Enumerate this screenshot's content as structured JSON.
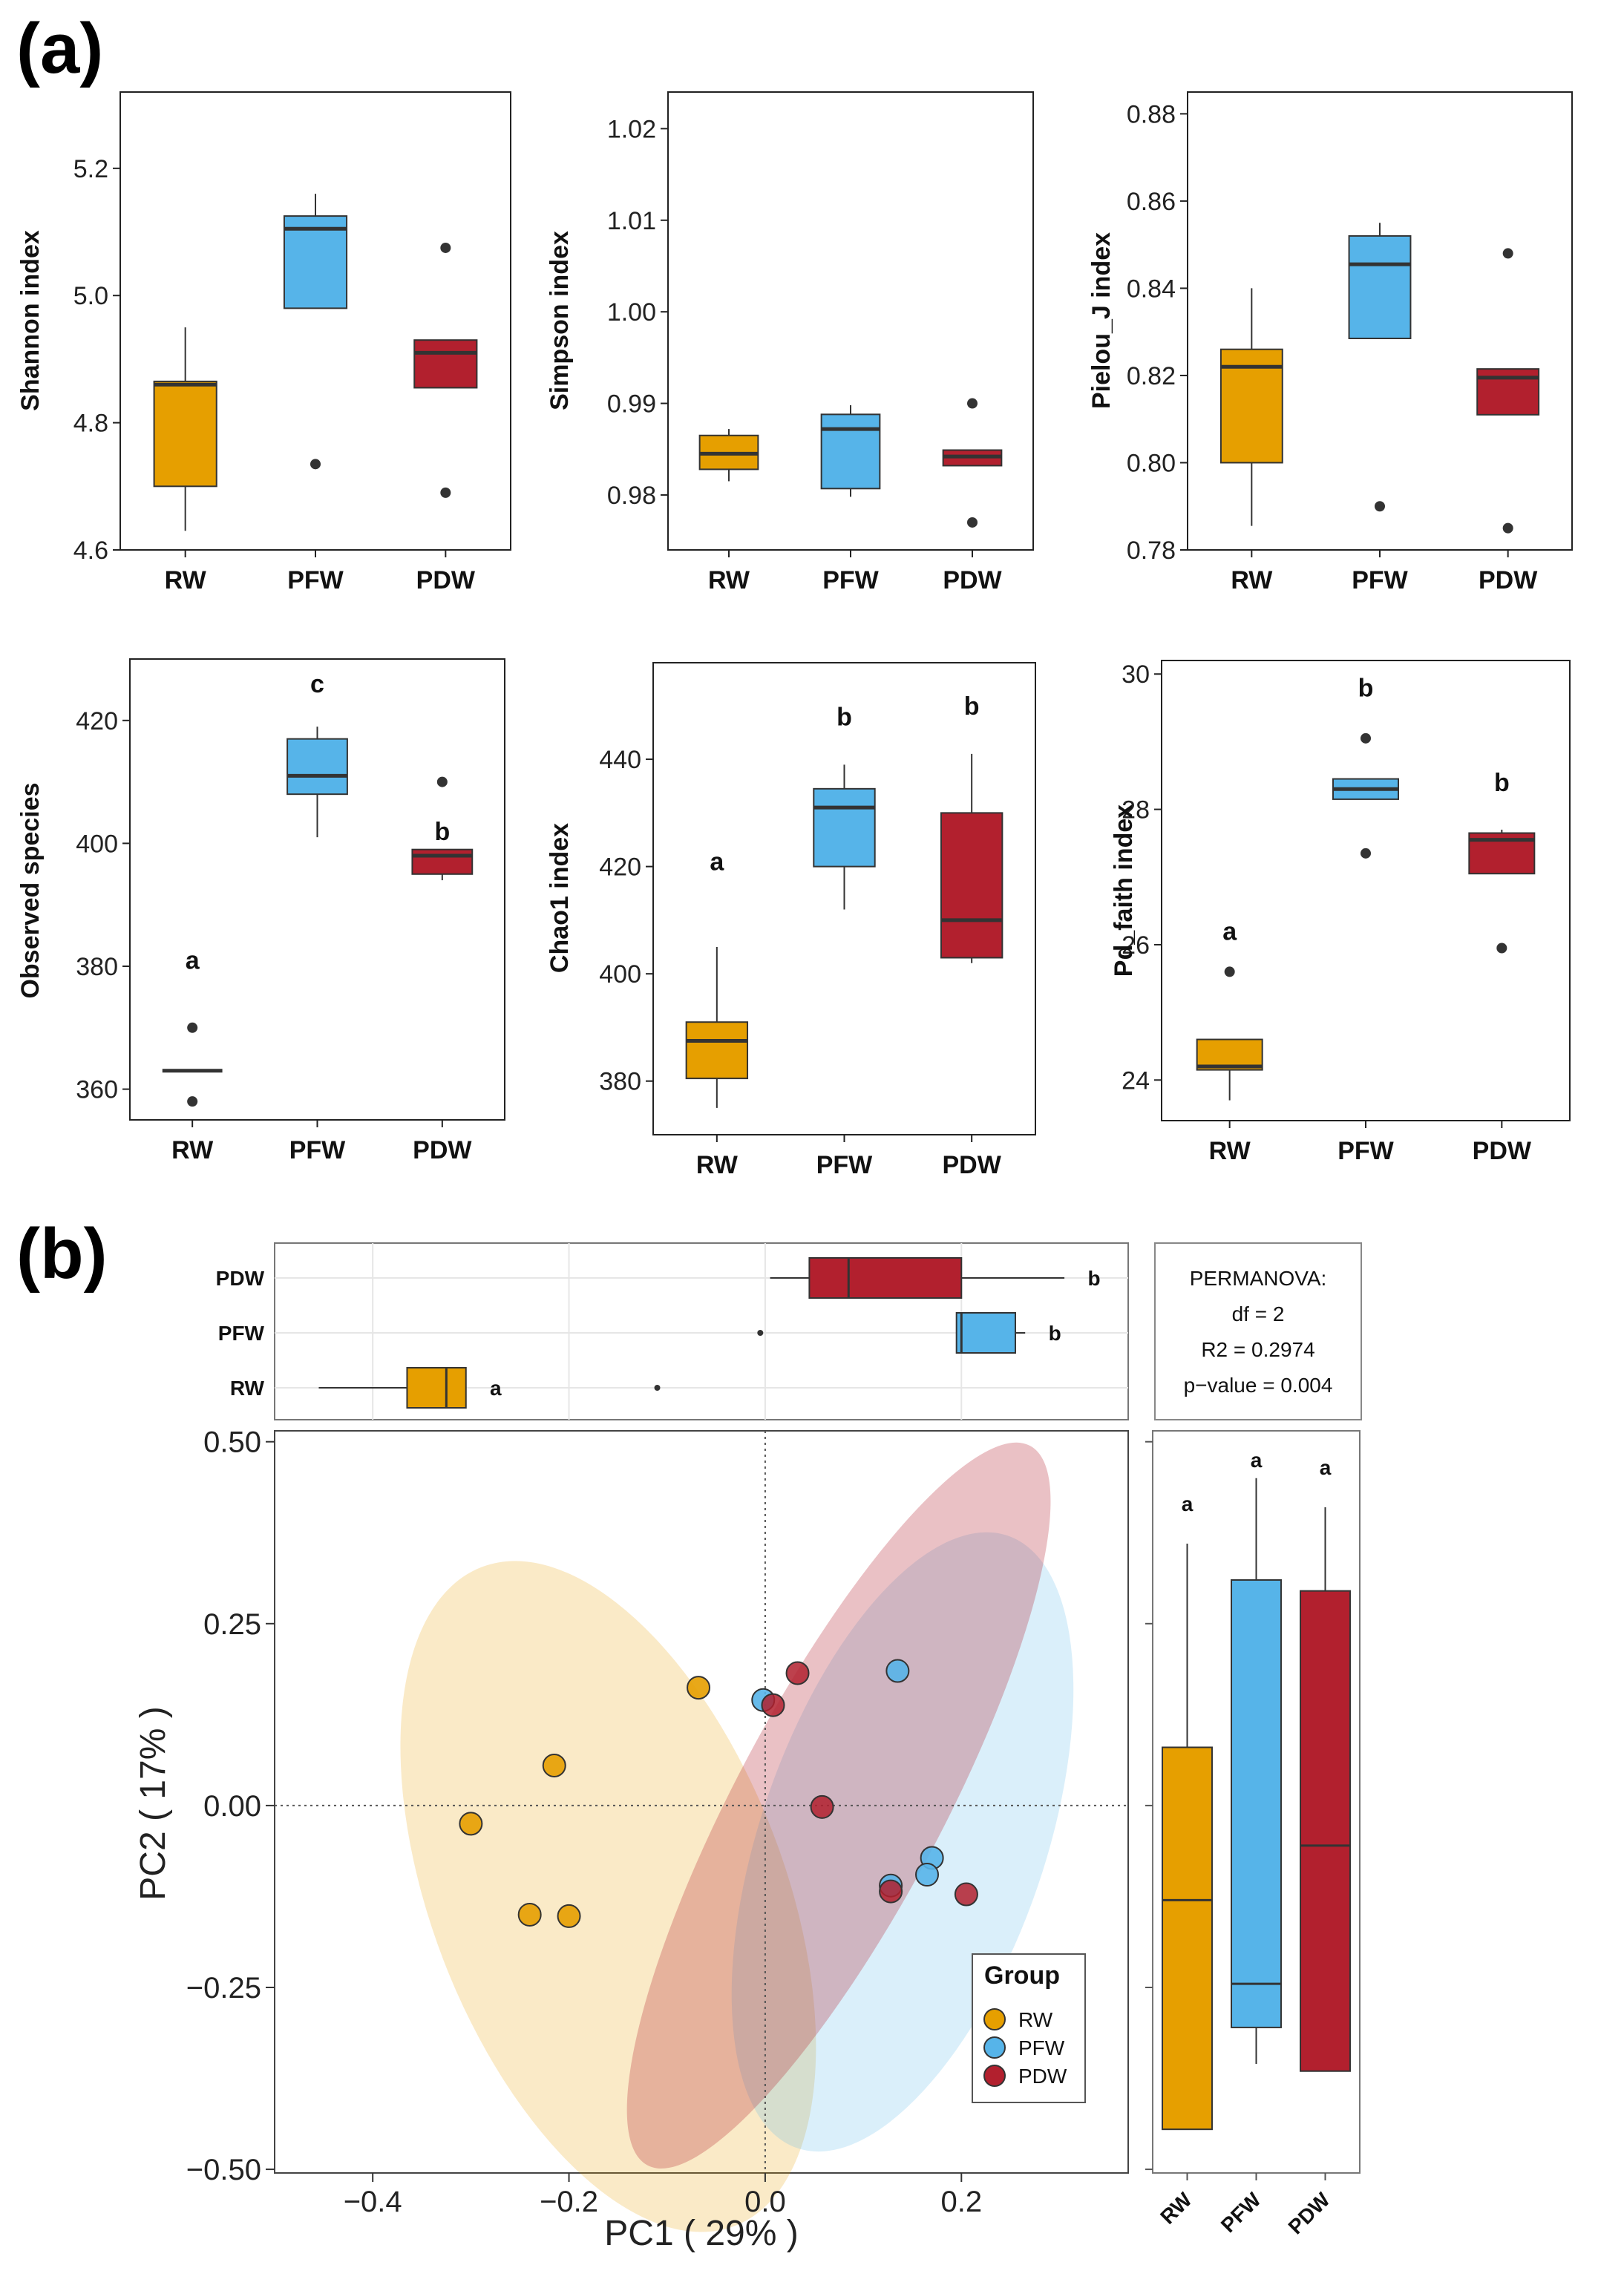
{
  "panel_a_label": "(a)",
  "panel_b_label": "(b)",
  "colors": {
    "RW": "#e69f00",
    "PFW": "#56b4e9",
    "PDW": "#b2202e"
  },
  "chart_data": [
    {
      "type": "box",
      "id": "shannon",
      "ylabel": "Shannon index",
      "categories": [
        "RW",
        "PFW",
        "PDW"
      ],
      "ylim": [
        4.6,
        5.32
      ],
      "yticks": [
        4.6,
        4.8,
        5.0,
        5.2
      ],
      "tick_labels": [
        "4.6",
        "4.8",
        "5.0",
        "5.2"
      ],
      "boxes": [
        {
          "group": "RW",
          "whisker_low": 4.63,
          "q1": 4.7,
          "median": 4.86,
          "q3": 4.865,
          "whisker_high": 4.95,
          "outliers": []
        },
        {
          "group": "PFW",
          "whisker_low": 4.98,
          "q1": 4.98,
          "median": 5.105,
          "q3": 5.125,
          "whisker_high": 5.16,
          "outliers": [
            4.735
          ]
        },
        {
          "group": "PDW",
          "whisker_low": 4.855,
          "q1": 4.855,
          "median": 4.91,
          "q3": 4.93,
          "whisker_high": 4.93,
          "outliers": [
            5.075,
            4.69
          ]
        }
      ],
      "letters": [
        "",
        "",
        ""
      ]
    },
    {
      "type": "box",
      "id": "simpson",
      "ylabel": "Simpson index",
      "categories": [
        "RW",
        "PFW",
        "PDW"
      ],
      "ylim": [
        0.974,
        1.024
      ],
      "yticks": [
        0.98,
        0.99,
        1.0,
        1.01,
        1.02
      ],
      "tick_labels": [
        "0.98",
        "0.99",
        "1.00",
        "1.01",
        "1.02"
      ],
      "boxes": [
        {
          "group": "RW",
          "whisker_low": 0.9815,
          "q1": 0.9828,
          "median": 0.9845,
          "q3": 0.9865,
          "whisker_high": 0.9872,
          "outliers": []
        },
        {
          "group": "PFW",
          "whisker_low": 0.9798,
          "q1": 0.9807,
          "median": 0.9872,
          "q3": 0.9888,
          "whisker_high": 0.9898,
          "outliers": []
        },
        {
          "group": "PDW",
          "whisker_low": 0.9832,
          "q1": 0.9832,
          "median": 0.9842,
          "q3": 0.9849,
          "whisker_high": 0.9849,
          "outliers": [
            0.99,
            0.977
          ]
        }
      ],
      "letters": [
        "",
        "",
        ""
      ]
    },
    {
      "type": "box",
      "id": "pielou",
      "ylabel": "Pielou_J index",
      "categories": [
        "RW",
        "PFW",
        "PDW"
      ],
      "ylim": [
        0.78,
        0.885
      ],
      "yticks": [
        0.78,
        0.8,
        0.82,
        0.84,
        0.86,
        0.88
      ],
      "tick_labels": [
        "0.78",
        "0.80",
        "0.82",
        "0.84",
        "0.86",
        "0.88"
      ],
      "boxes": [
        {
          "group": "RW",
          "whisker_low": 0.7855,
          "q1": 0.8,
          "median": 0.822,
          "q3": 0.826,
          "whisker_high": 0.84,
          "outliers": []
        },
        {
          "group": "PFW",
          "whisker_low": 0.8285,
          "q1": 0.8285,
          "median": 0.8455,
          "q3": 0.852,
          "whisker_high": 0.855,
          "outliers": [
            0.79
          ]
        },
        {
          "group": "PDW",
          "whisker_low": 0.811,
          "q1": 0.811,
          "median": 0.8195,
          "q3": 0.8215,
          "whisker_high": 0.8215,
          "outliers": [
            0.848,
            0.785
          ]
        }
      ],
      "letters": [
        "",
        "",
        ""
      ]
    },
    {
      "type": "box",
      "id": "observed",
      "ylabel": "Observed species",
      "categories": [
        "RW",
        "PFW",
        "PDW"
      ],
      "ylim": [
        355,
        430
      ],
      "yticks": [
        360,
        380,
        400,
        420
      ],
      "tick_labels": [
        "360",
        "380",
        "400",
        "420"
      ],
      "boxes": [
        {
          "group": "RW",
          "whisker_low": 363,
          "q1": 363,
          "median": 363,
          "q3": 363,
          "whisker_high": 363,
          "outliers": [
            370,
            358
          ]
        },
        {
          "group": "PFW",
          "whisker_low": 401,
          "q1": 408,
          "median": 411,
          "q3": 417,
          "whisker_high": 419,
          "outliers": []
        },
        {
          "group": "PDW",
          "whisker_low": 394,
          "q1": 395,
          "median": 398,
          "q3": 399,
          "whisker_high": 399,
          "outliers": [
            410
          ]
        }
      ],
      "letters": [
        "a",
        "c",
        "b"
      ],
      "letter_values": [
        381,
        426,
        402
      ]
    },
    {
      "type": "box",
      "id": "chao1",
      "ylabel": "Chao1 index",
      "categories": [
        "RW",
        "PFW",
        "PDW"
      ],
      "ylim": [
        370,
        458
      ],
      "yticks": [
        380,
        400,
        420,
        440
      ],
      "tick_labels": [
        "380",
        "400",
        "420",
        "440"
      ],
      "boxes": [
        {
          "group": "RW",
          "whisker_low": 375,
          "q1": 380.5,
          "median": 387.5,
          "q3": 391,
          "whisker_high": 405,
          "outliers": []
        },
        {
          "group": "PFW",
          "whisker_low": 412,
          "q1": 420,
          "median": 431,
          "q3": 434.5,
          "whisker_high": 439,
          "outliers": []
        },
        {
          "group": "PDW",
          "whisker_low": 402,
          "q1": 403,
          "median": 410,
          "q3": 430,
          "whisker_high": 441,
          "outliers": []
        }
      ],
      "letters": [
        "a",
        "b",
        "b"
      ],
      "letter_values": [
        421,
        448,
        450
      ]
    },
    {
      "type": "box",
      "id": "pdfaith",
      "ylabel": "Pd_faith index",
      "categories": [
        "RW",
        "PFW",
        "PDW"
      ],
      "ylim": [
        23.4,
        30.2
      ],
      "yticks": [
        24,
        26,
        28,
        30
      ],
      "tick_labels": [
        "24",
        "26",
        "28",
        "30"
      ],
      "boxes": [
        {
          "group": "RW",
          "whisker_low": 23.7,
          "q1": 24.15,
          "median": 24.2,
          "q3": 24.6,
          "whisker_high": 24.6,
          "outliers": [
            25.6
          ]
        },
        {
          "group": "PFW",
          "whisker_low": 28.15,
          "q1": 28.15,
          "median": 28.3,
          "q3": 28.45,
          "whisker_high": 28.45,
          "outliers": [
            29.05,
            27.35
          ]
        },
        {
          "group": "PDW",
          "whisker_low": 27.05,
          "q1": 27.05,
          "median": 27.55,
          "q3": 27.65,
          "whisker_high": 27.7,
          "outliers": [
            25.95
          ]
        }
      ],
      "letters": [
        "a",
        "b",
        "b"
      ],
      "letter_values": [
        26.2,
        29.8,
        28.4
      ]
    },
    {
      "type": "box-horizontal",
      "id": "pc1_marginal",
      "categories": [
        "PDW",
        "PFW",
        "RW"
      ],
      "xlim": [
        -0.5,
        0.37
      ],
      "boxes": [
        {
          "group": "PDW",
          "whisker_low": 0.005,
          "q1": 0.045,
          "median": 0.085,
          "q3": 0.2,
          "whisker_high": 0.305,
          "outliers": []
        },
        {
          "group": "PFW",
          "whisker_low": 0.195,
          "q1": 0.195,
          "median": 0.2,
          "q3": 0.255,
          "whisker_high": 0.265,
          "outliers": [
            -0.005
          ]
        },
        {
          "group": "RW",
          "whisker_low": -0.455,
          "q1": -0.365,
          "median": -0.325,
          "q3": -0.305,
          "whisker_high": -0.305,
          "outliers": [
            -0.11
          ]
        }
      ],
      "letters": [
        "b",
        "b",
        "a"
      ]
    },
    {
      "type": "scatter",
      "id": "pcoa",
      "xlabel": "PC1 ( 29% )",
      "ylabel": "PC2 ( 17% )",
      "xlim": [
        -0.5,
        0.37
      ],
      "ylim": [
        -0.505,
        0.515
      ],
      "xticks": [
        -0.4,
        -0.2,
        0.0,
        0.2
      ],
      "xtick_labels": [
        "−0.4",
        "−0.2",
        "0.0",
        "0.2"
      ],
      "yticks": [
        -0.5,
        -0.25,
        0.0,
        0.25,
        0.5
      ],
      "ytick_labels": [
        "−0.50",
        "−0.25",
        "0.00",
        "0.25",
        "0.50"
      ],
      "points": [
        {
          "group": "RW",
          "x": -0.215,
          "y": 0.055
        },
        {
          "group": "RW",
          "x": -0.3,
          "y": -0.025
        },
        {
          "group": "RW",
          "x": -0.24,
          "y": -0.15
        },
        {
          "group": "RW",
          "x": -0.2,
          "y": -0.152
        },
        {
          "group": "RW",
          "x": -0.068,
          "y": 0.162
        },
        {
          "group": "PFW",
          "x": 0.135,
          "y": 0.185
        },
        {
          "group": "PFW",
          "x": -0.002,
          "y": 0.145
        },
        {
          "group": "PFW",
          "x": 0.128,
          "y": -0.11
        },
        {
          "group": "PFW",
          "x": 0.17,
          "y": -0.072
        },
        {
          "group": "PFW",
          "x": 0.165,
          "y": -0.095
        },
        {
          "group": "PDW",
          "x": 0.033,
          "y": 0.182
        },
        {
          "group": "PDW",
          "x": 0.008,
          "y": 0.138
        },
        {
          "group": "PDW",
          "x": 0.058,
          "y": -0.002
        },
        {
          "group": "PDW",
          "x": 0.128,
          "y": -0.118
        },
        {
          "group": "PDW",
          "x": 0.205,
          "y": -0.122
        }
      ],
      "ellipses": [
        {
          "group": "RW",
          "cx": -0.16,
          "cy": -0.125,
          "rx": 0.18,
          "ry": 0.485,
          "angle": -21
        },
        {
          "group": "PFW",
          "cx": 0.14,
          "cy": -0.05,
          "rx": 0.145,
          "ry": 0.445,
          "angle": 19
        },
        {
          "group": "PDW",
          "cx": 0.075,
          "cy": 0.0,
          "rx": 0.105,
          "ry": 0.56,
          "angle": 28
        }
      ],
      "legend": {
        "title": "Group",
        "items": [
          "RW",
          "PFW",
          "PDW"
        ],
        "position": "bottom-right"
      }
    },
    {
      "type": "box",
      "id": "pc2_marginal",
      "categories": [
        "RW",
        "PFW",
        "PDW"
      ],
      "ylim": [
        -0.505,
        0.515
      ],
      "boxes": [
        {
          "group": "RW",
          "whisker_low": -0.445,
          "q1": -0.445,
          "median": -0.13,
          "q3": 0.08,
          "whisker_high": 0.36,
          "outliers": []
        },
        {
          "group": "PFW",
          "whisker_low": -0.355,
          "q1": -0.305,
          "median": -0.245,
          "q3": 0.31,
          "whisker_high": 0.45,
          "outliers": []
        },
        {
          "group": "PDW",
          "whisker_low": -0.365,
          "q1": -0.365,
          "median": -0.055,
          "q3": 0.295,
          "whisker_high": 0.41,
          "outliers": []
        }
      ],
      "letters": [
        "a",
        "a",
        "a"
      ],
      "letter_values": [
        0.415,
        0.475,
        0.465
      ]
    }
  ],
  "permanova": {
    "title": "PERMANOVA:",
    "df": "df = 2",
    "r2": "R2 = 0.2974",
    "p": "p−value = 0.004"
  }
}
